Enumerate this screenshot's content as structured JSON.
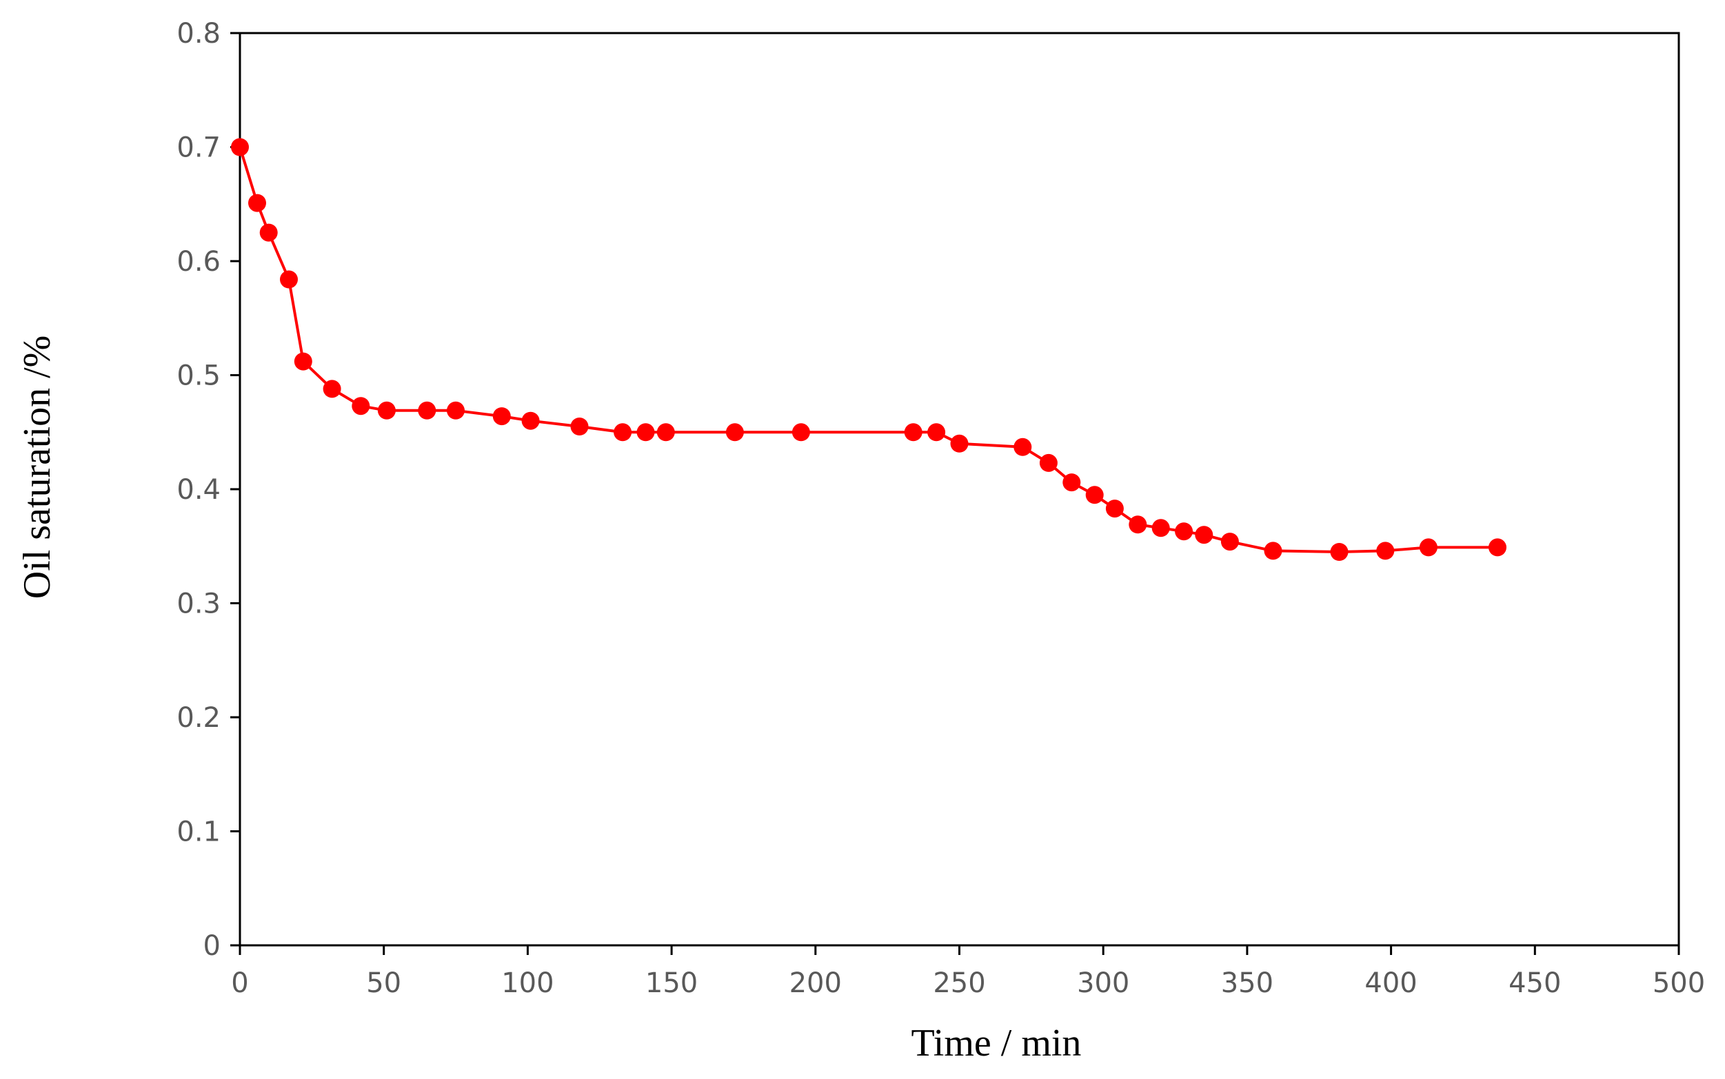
{
  "chart_data": {
    "type": "line",
    "title": "",
    "xlabel": "Time  / min",
    "ylabel": "Oil saturation /%",
    "xlim": [
      0,
      500
    ],
    "ylim": [
      0,
      0.8
    ],
    "x_ticks": [
      "0",
      "50",
      "100",
      "150",
      "200",
      "250",
      "300",
      "350",
      "400",
      "450",
      "500"
    ],
    "y_ticks": [
      "0",
      "0.1",
      "0.2",
      "0.3",
      "0.4",
      "0.5",
      "0.6",
      "0.7",
      "0.8"
    ],
    "grid": false,
    "legend": "none",
    "series": [
      {
        "color": "#ff0000",
        "marker": "circle",
        "points": [
          [
            0,
            0.7
          ],
          [
            6,
            0.651
          ],
          [
            10,
            0.625
          ],
          [
            17,
            0.584
          ],
          [
            22,
            0.512
          ],
          [
            32,
            0.488
          ],
          [
            42,
            0.473
          ],
          [
            51,
            0.469
          ],
          [
            65,
            0.469
          ],
          [
            75,
            0.469
          ],
          [
            91,
            0.464
          ],
          [
            101,
            0.46
          ],
          [
            118,
            0.455
          ],
          [
            133,
            0.45
          ],
          [
            141,
            0.45
          ],
          [
            148,
            0.45
          ],
          [
            172,
            0.45
          ],
          [
            195,
            0.45
          ],
          [
            234,
            0.45
          ],
          [
            242,
            0.45
          ],
          [
            250,
            0.44
          ],
          [
            272,
            0.437
          ],
          [
            281,
            0.423
          ],
          [
            289,
            0.406
          ],
          [
            297,
            0.395
          ],
          [
            304,
            0.383
          ],
          [
            312,
            0.369
          ],
          [
            320,
            0.366
          ],
          [
            328,
            0.363
          ],
          [
            335,
            0.36
          ],
          [
            344,
            0.354
          ],
          [
            359,
            0.346
          ],
          [
            382,
            0.345
          ],
          [
            398,
            0.346
          ],
          [
            413,
            0.349
          ],
          [
            437,
            0.349
          ]
        ]
      }
    ]
  }
}
